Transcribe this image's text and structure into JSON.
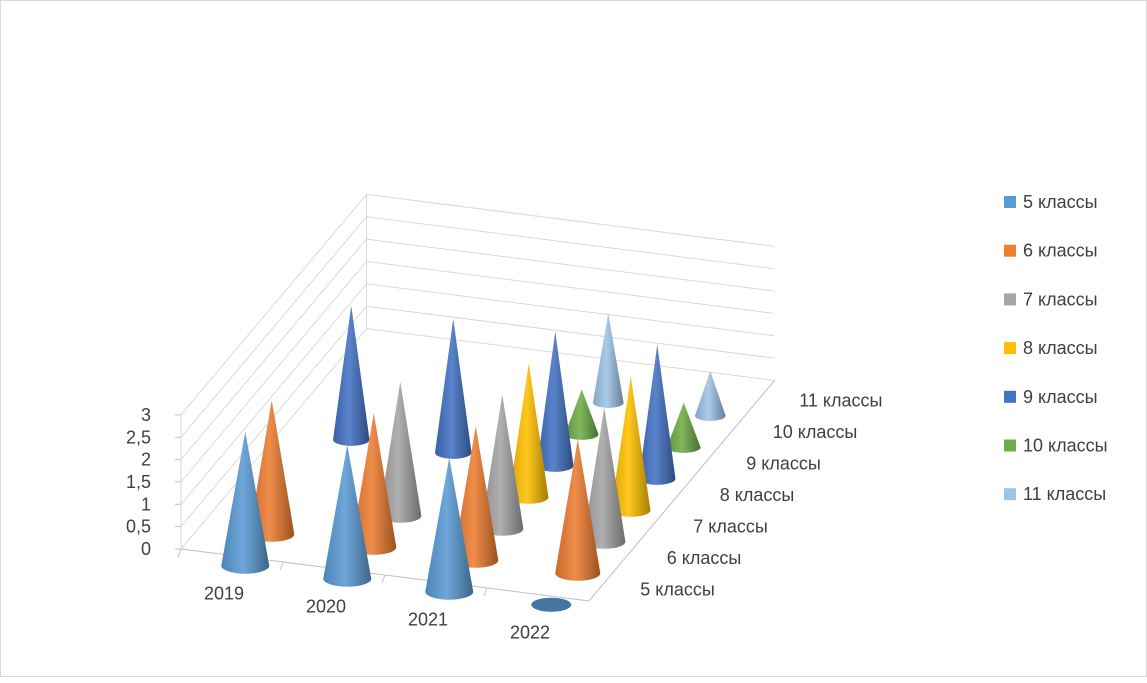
{
  "chart_data": {
    "type": "3d-cone-column",
    "categories": [
      "2019",
      "2020",
      "2021",
      "2022"
    ],
    "series": [
      {
        "name": "5 классы",
        "color": "#5b9bd5",
        "values": [
          3,
          3,
          3,
          0
        ]
      },
      {
        "name": "6 классы",
        "color": "#ed7d31",
        "values": [
          3,
          3,
          3,
          3
        ]
      },
      {
        "name": "7 классы",
        "color": "#a5a5a5",
        "values": [
          0,
          3,
          3,
          3
        ]
      },
      {
        "name": "8 классы",
        "color": "#ffc000",
        "values": [
          0,
          0,
          3,
          3
        ]
      },
      {
        "name": "9 классы",
        "color": "#4472c4",
        "values": [
          3,
          3,
          3,
          3
        ]
      },
      {
        "name": "10 классы",
        "color": "#70ad47",
        "values": [
          0,
          0,
          1,
          1
        ]
      },
      {
        "name": "11 классы",
        "color": "#9dc3e6",
        "values": [
          0,
          0,
          2,
          1
        ]
      }
    ],
    "z_tick_labels": [
      "0",
      "0,5",
      "1",
      "1,5",
      "2",
      "2,5",
      "3"
    ],
    "zlim": [
      0,
      3
    ],
    "grid": true,
    "legend_position": "right"
  }
}
